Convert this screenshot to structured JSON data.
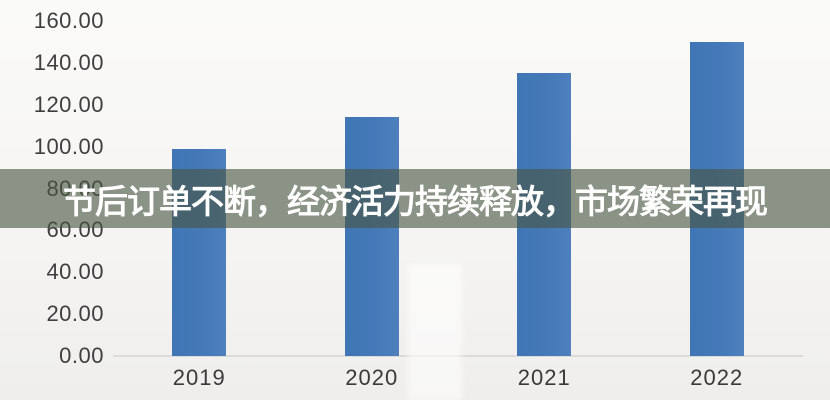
{
  "headline": {
    "text": "节后订单不断，经济活力持续释放，市场繁荣再现",
    "text_color": "#ffffff",
    "banner_color": "rgba(72,85,66,0.62)"
  },
  "chart_data": {
    "type": "bar",
    "categories": [
      "2019",
      "2020",
      "2021",
      "2022"
    ],
    "values": [
      99,
      114,
      135,
      150
    ],
    "title": "",
    "xlabel": "",
    "ylabel": "",
    "ylim": [
      0,
      160
    ],
    "ytick_step": 20,
    "ytick_labels": [
      "0.00",
      "20.00",
      "40.00",
      "60.00",
      "80.00",
      "100.00",
      "120.00",
      "140.00",
      "160.00"
    ],
    "bar_color": "#4478b7",
    "axis_line_color": "#dbdbd9",
    "grid": false,
    "legend": null
  }
}
